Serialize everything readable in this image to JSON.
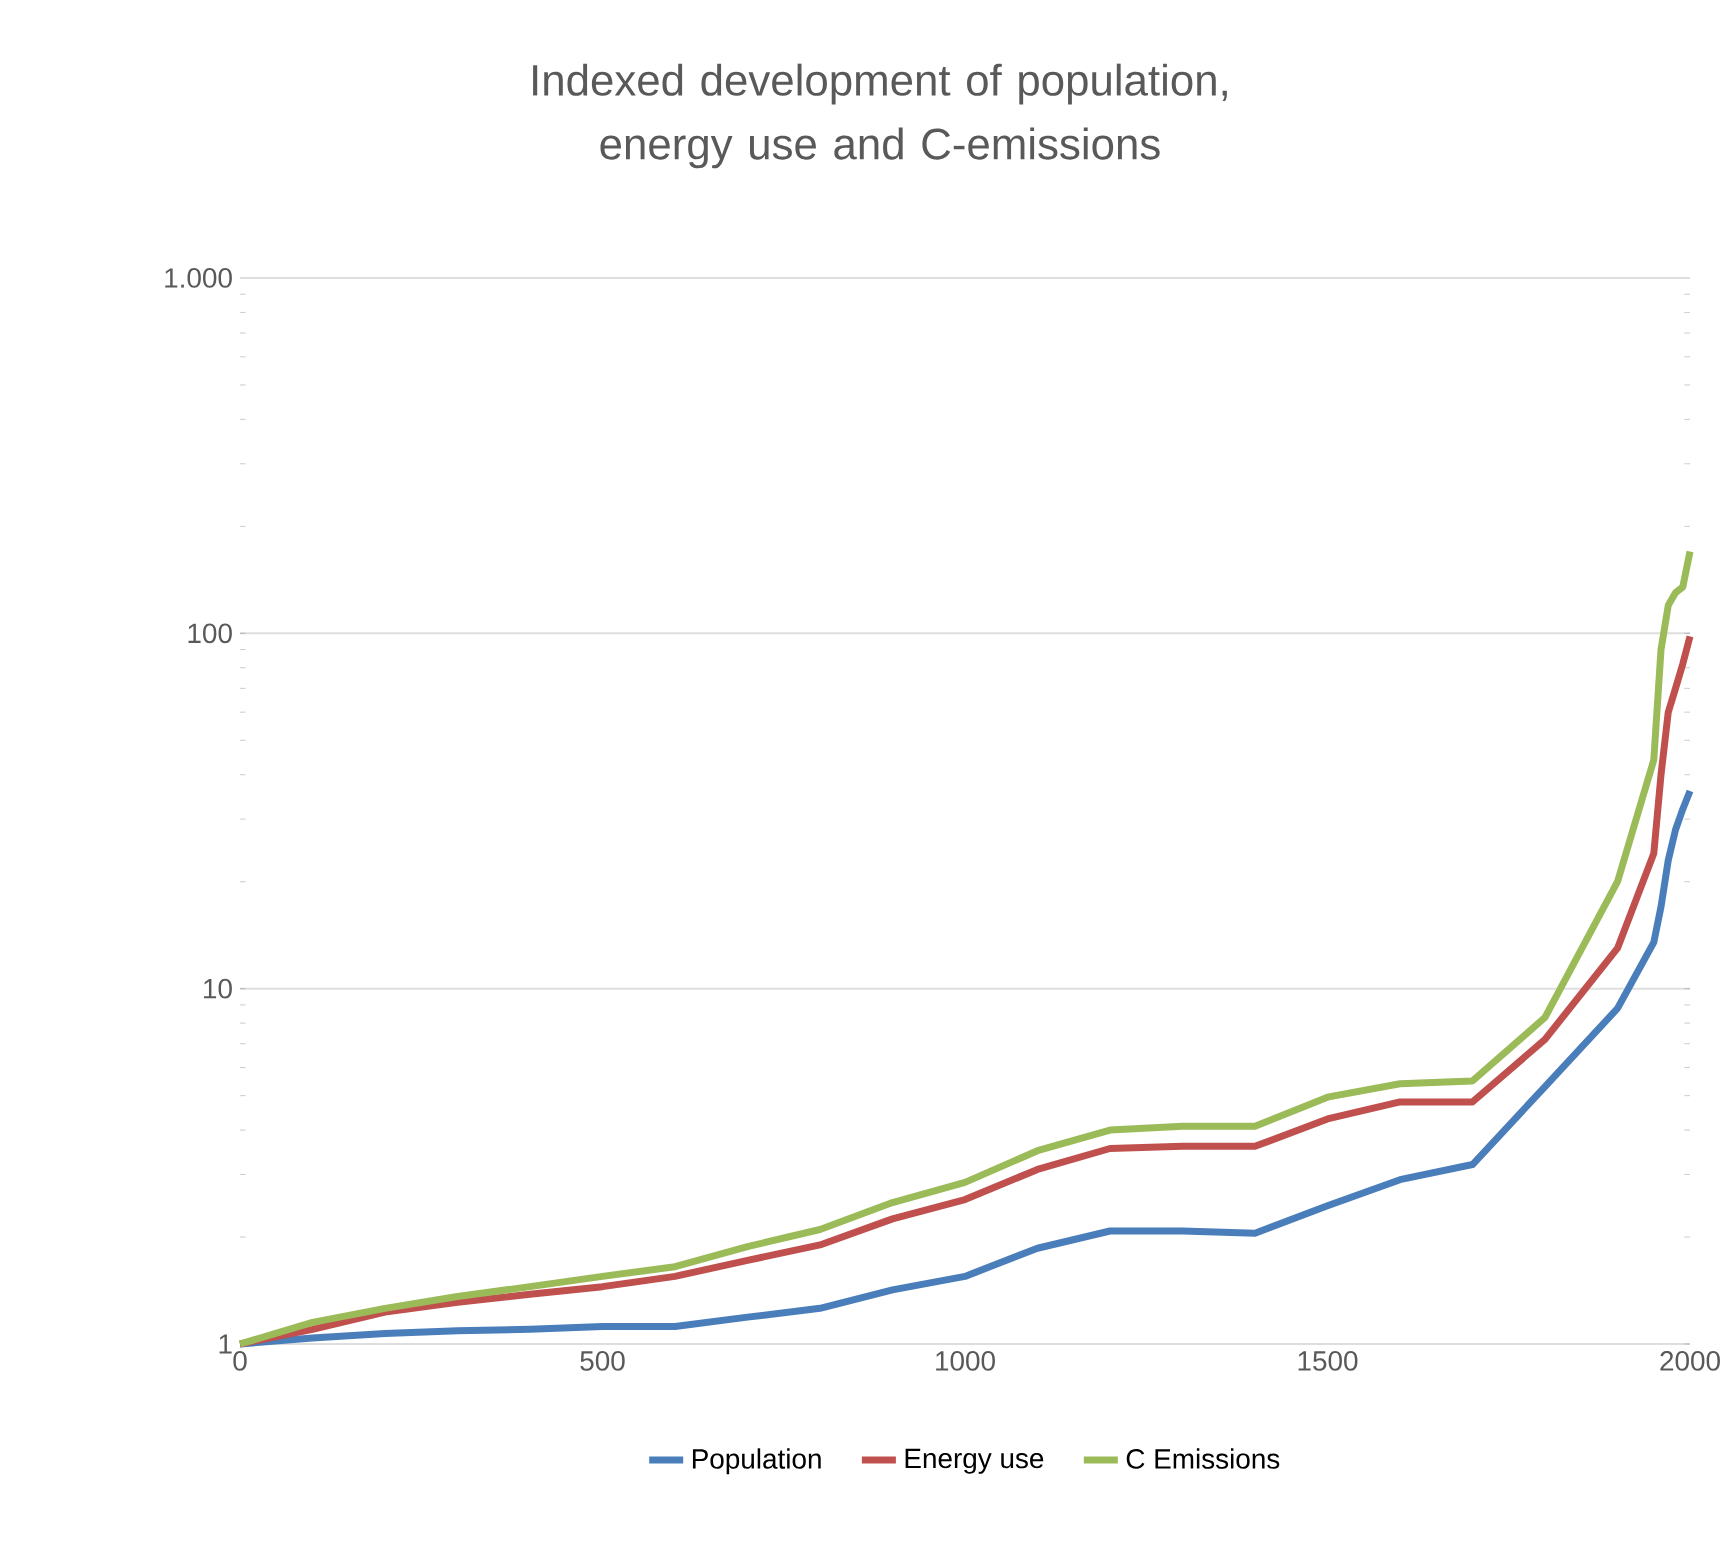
{
  "chart_data": {
    "type": "line",
    "title": "Indexed development of population, energy use and C-emissions",
    "x": [
      0,
      100,
      200,
      300,
      400,
      500,
      600,
      700,
      800,
      900,
      1000,
      1100,
      1200,
      1300,
      1400,
      1500,
      1600,
      1700,
      1800,
      1900,
      1950,
      1960,
      1970,
      1980,
      1990,
      2000
    ],
    "series": [
      {
        "name": "Population",
        "color": "#4a7ebb",
        "values": [
          1,
          1.04,
          1.07,
          1.09,
          1.1,
          1.12,
          1.12,
          1.19,
          1.26,
          1.42,
          1.55,
          1.86,
          2.08,
          2.08,
          2.05,
          2.45,
          2.9,
          3.2,
          5.3,
          8.8,
          13.5,
          17,
          23,
          28,
          32,
          36
        ]
      },
      {
        "name": "Energy use",
        "color": "#c0504d",
        "values": [
          1,
          1.1,
          1.23,
          1.31,
          1.38,
          1.45,
          1.55,
          1.72,
          1.9,
          2.25,
          2.55,
          3.1,
          3.55,
          3.6,
          3.6,
          4.3,
          4.8,
          4.8,
          7.2,
          13,
          24,
          40,
          60,
          70,
          82,
          98
        ]
      },
      {
        "name": "C Emissions",
        "color": "#9bbb59",
        "values": [
          1,
          1.15,
          1.26,
          1.36,
          1.45,
          1.55,
          1.65,
          1.88,
          2.1,
          2.5,
          2.85,
          3.5,
          4.0,
          4.1,
          4.1,
          4.95,
          5.4,
          5.5,
          8.3,
          20,
          44,
          90,
          120,
          130,
          135,
          170
        ]
      }
    ],
    "xlim": [
      0,
      2000
    ],
    "xticks": [
      0,
      500,
      1000,
      1500,
      2000
    ],
    "ylim": [
      1,
      1000
    ],
    "yticks": [
      1,
      10,
      100,
      {
        "value": 1000,
        "label": "1.000"
      }
    ],
    "log": "y",
    "grid": "y",
    "legend": "bottom",
    "marker": "none",
    "line_style": "solid"
  }
}
